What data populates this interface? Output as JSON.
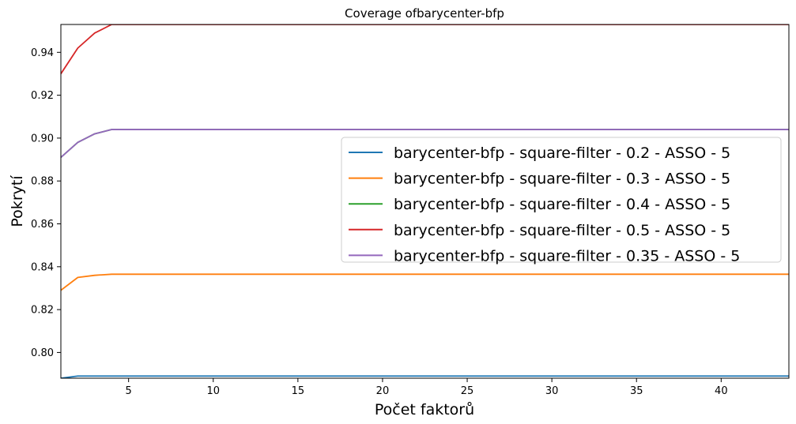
{
  "chart_data": {
    "type": "line",
    "title": "Coverage ofbarycenter-bfp",
    "xlabel": "Počet faktorů",
    "ylabel": "Pokrytí",
    "xlim": [
      1,
      44
    ],
    "ylim": [
      0.788,
      0.953
    ],
    "xticks": [
      5,
      10,
      15,
      20,
      25,
      30,
      35,
      40
    ],
    "xtick_labels": [
      "5",
      "10",
      "15",
      "20",
      "25",
      "30",
      "35",
      "40"
    ],
    "yticks": [
      0.8,
      0.82,
      0.84,
      0.86,
      0.88,
      0.9,
      0.92,
      0.94
    ],
    "ytick_labels": [
      "0.80",
      "0.82",
      "0.84",
      "0.86",
      "0.88",
      "0.90",
      "0.92",
      "0.94"
    ],
    "grid": false,
    "legend_position": "center-right",
    "x": [
      1,
      2,
      3,
      4,
      5,
      6,
      7,
      8,
      9,
      10,
      11,
      12,
      13,
      14,
      15,
      16,
      17,
      18,
      19,
      20,
      21,
      22,
      23,
      24,
      25,
      26,
      27,
      28,
      29,
      30,
      31,
      32,
      33,
      34,
      35,
      36,
      37,
      38,
      39,
      40,
      41,
      42,
      43,
      44
    ],
    "series": [
      {
        "name": "barycenter-bfp - square-filter - 0.2 - ASSO - 5",
        "color": "#1f77b4",
        "values": [
          0.788,
          0.789,
          0.789,
          0.789,
          0.789,
          0.789,
          0.789,
          0.789,
          0.789,
          0.789,
          0.789,
          0.789,
          0.789,
          0.789,
          0.789,
          0.789,
          0.789,
          0.789,
          0.789,
          0.789,
          0.789,
          0.789,
          0.789,
          0.789,
          0.789,
          0.789,
          0.789,
          0.789,
          0.789,
          0.789,
          0.789,
          0.789,
          0.789,
          0.789,
          0.789,
          0.789,
          0.789,
          0.789,
          0.789,
          0.789,
          0.789,
          0.789,
          0.789,
          0.789
        ]
      },
      {
        "name": "barycenter-bfp - square-filter - 0.3 - ASSO - 5",
        "color": "#ff7f0e",
        "values": [
          0.829,
          0.835,
          0.836,
          0.8365,
          0.8365,
          0.8365,
          0.8365,
          0.8365,
          0.8365,
          0.8365,
          0.8365,
          0.8365,
          0.8365,
          0.8365,
          0.8365,
          0.8365,
          0.8365,
          0.8365,
          0.8365,
          0.8365,
          0.8365,
          0.8365,
          0.8365,
          0.8365,
          0.8365,
          0.8365,
          0.8365,
          0.8365,
          0.8365,
          0.8365,
          0.8365,
          0.8365,
          0.8365,
          0.8365,
          0.8365,
          0.8365,
          0.8365,
          0.8365,
          0.8365,
          0.8365,
          0.8365,
          0.8365,
          0.8365,
          0.8365
        ]
      },
      {
        "name": "barycenter-bfp - square-filter - 0.4 - ASSO - 5",
        "color": "#2ca02c",
        "values": [
          0.891,
          0.898,
          0.902,
          0.904,
          0.904,
          0.904,
          0.904,
          0.904,
          0.904,
          0.904,
          0.904,
          0.904,
          0.904,
          0.904,
          0.904,
          0.904,
          0.904,
          0.904,
          0.904,
          0.904,
          0.904,
          0.904,
          0.904,
          0.904,
          0.904,
          0.904,
          0.904,
          0.904,
          0.904,
          0.904,
          0.904,
          0.904,
          0.904,
          0.904,
          0.904,
          0.904,
          0.904,
          0.904,
          0.904,
          0.904,
          0.904,
          0.904,
          0.904,
          0.904
        ]
      },
      {
        "name": "barycenter-bfp - square-filter - 0.5 - ASSO - 5",
        "color": "#d62728",
        "values": [
          0.93,
          0.942,
          0.949,
          0.953,
          0.953,
          0.953,
          0.953,
          0.953,
          0.953,
          0.953,
          0.953,
          0.953,
          0.953,
          0.953,
          0.953,
          0.953,
          0.953,
          0.953,
          0.953,
          0.953,
          0.953,
          0.953,
          0.953,
          0.953,
          0.953,
          0.953,
          0.953,
          0.953,
          0.953,
          0.953,
          0.953,
          0.953,
          0.953,
          0.953,
          0.953,
          0.953,
          0.953,
          0.953,
          0.953,
          0.953,
          0.953,
          0.953,
          0.953,
          0.953
        ]
      },
      {
        "name": "barycenter-bfp - square-filter - 0.35 - ASSO - 5",
        "color": "#9467bd",
        "values": [
          0.891,
          0.898,
          0.902,
          0.904,
          0.904,
          0.904,
          0.904,
          0.904,
          0.904,
          0.904,
          0.904,
          0.904,
          0.904,
          0.904,
          0.904,
          0.904,
          0.904,
          0.904,
          0.904,
          0.904,
          0.904,
          0.904,
          0.904,
          0.904,
          0.904,
          0.904,
          0.904,
          0.904,
          0.904,
          0.904,
          0.904,
          0.904,
          0.904,
          0.904,
          0.904,
          0.904,
          0.904,
          0.904,
          0.904,
          0.904,
          0.904,
          0.904,
          0.904,
          0.904
        ]
      }
    ]
  }
}
